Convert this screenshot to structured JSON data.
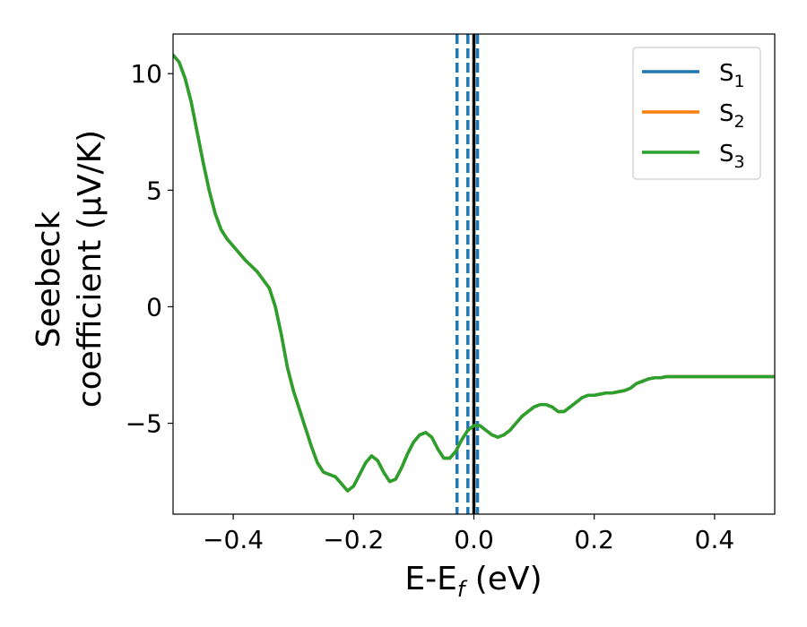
{
  "chart_data": {
    "type": "line",
    "xlabel_main": "E-E",
    "xlabel_sub": "f",
    "xlabel_unit": " (eV)",
    "ylabel_line1": "Seebeck",
    "ylabel_line2": "coefficient  (μV/K)",
    "xlim": [
      -0.5,
      0.5
    ],
    "ylim": [
      -8.9,
      11.7
    ],
    "x_ticks": [
      -0.4,
      -0.2,
      0.0,
      0.2,
      0.4
    ],
    "x_tick_labels": [
      "−0.4",
      "−0.2",
      "0.0",
      "0.2",
      "0.4"
    ],
    "y_ticks": [
      -5,
      0,
      5,
      10
    ],
    "y_tick_labels": [
      "−5",
      "0",
      "5",
      "10"
    ],
    "grid": false,
    "legend_position": "top-right",
    "vertical_lines": [
      {
        "x": -0.028,
        "style": "dashed",
        "color": "#1f77b4"
      },
      {
        "x": -0.01,
        "style": "dashed",
        "color": "#1f77b4"
      },
      {
        "x": 0.006,
        "style": "dashed",
        "color": "#1f77b4"
      },
      {
        "x": 0.0,
        "style": "solid",
        "color": "#000000"
      }
    ],
    "series": [
      {
        "name_main": "S",
        "name_sub": "1",
        "color": "#1f77b4",
        "hidden_under_next": true,
        "x": [
          -0.5,
          -0.49,
          -0.48,
          -0.47,
          -0.46,
          -0.45,
          -0.44,
          -0.43,
          -0.42,
          -0.41,
          -0.4,
          -0.38,
          -0.36,
          -0.34,
          -0.33,
          -0.32,
          -0.31,
          -0.3,
          -0.29,
          -0.28,
          -0.27,
          -0.26,
          -0.25,
          -0.24,
          -0.23,
          -0.22,
          -0.21,
          -0.2,
          -0.19,
          -0.18,
          -0.17,
          -0.16,
          -0.15,
          -0.14,
          -0.13,
          -0.12,
          -0.11,
          -0.1,
          -0.09,
          -0.08,
          -0.07,
          -0.06,
          -0.05,
          -0.04,
          -0.03,
          -0.02,
          -0.01,
          0.0,
          0.01,
          0.02,
          0.03,
          0.04,
          0.05,
          0.06,
          0.07,
          0.08,
          0.09,
          0.1,
          0.11,
          0.12,
          0.13,
          0.14,
          0.15,
          0.16,
          0.17,
          0.18,
          0.19,
          0.2,
          0.21,
          0.22,
          0.23,
          0.24,
          0.25,
          0.26,
          0.27,
          0.28,
          0.29,
          0.3,
          0.31,
          0.32,
          0.33,
          0.34,
          0.35,
          0.36,
          0.37,
          0.38,
          0.39,
          0.4,
          0.41,
          0.42,
          0.43,
          0.44,
          0.45,
          0.46,
          0.47,
          0.48,
          0.49,
          0.5
        ],
        "y": [
          10.8,
          10.5,
          9.8,
          8.8,
          7.5,
          6.2,
          5.0,
          4.0,
          3.3,
          2.9,
          2.6,
          2.0,
          1.5,
          0.8,
          0.0,
          -1.2,
          -2.6,
          -3.6,
          -4.4,
          -5.2,
          -6.0,
          -6.7,
          -7.1,
          -7.2,
          -7.3,
          -7.6,
          -7.9,
          -7.7,
          -7.2,
          -6.7,
          -6.4,
          -6.6,
          -7.1,
          -7.5,
          -7.4,
          -6.9,
          -6.3,
          -5.8,
          -5.5,
          -5.4,
          -5.6,
          -6.1,
          -6.5,
          -6.5,
          -6.2,
          -5.7,
          -5.3,
          -5.1,
          -5.1,
          -5.3,
          -5.5,
          -5.6,
          -5.5,
          -5.3,
          -5.0,
          -4.7,
          -4.5,
          -4.3,
          -4.2,
          -4.2,
          -4.3,
          -4.5,
          -4.5,
          -4.3,
          -4.1,
          -3.9,
          -3.8,
          -3.8,
          -3.75,
          -3.7,
          -3.7,
          -3.65,
          -3.6,
          -3.5,
          -3.3,
          -3.2,
          -3.1,
          -3.05,
          -3.05,
          -3.0,
          -3.0,
          -3.0,
          -3.0,
          -3.0,
          -3.0,
          -3.0,
          -3.0,
          -3.0,
          -3.0,
          -3.0,
          -3.0,
          -3.0,
          -3.0,
          -3.0,
          -3.0,
          -3.0,
          -3.0,
          -3.0
        ]
      },
      {
        "name_main": "S",
        "name_sub": "2",
        "color": "#ff7f0e",
        "hidden_under_next": true,
        "x": [
          -0.5,
          -0.49,
          -0.48,
          -0.47,
          -0.46,
          -0.45,
          -0.44,
          -0.43,
          -0.42,
          -0.41,
          -0.4,
          -0.38,
          -0.36,
          -0.34,
          -0.33,
          -0.32,
          -0.31,
          -0.3,
          -0.29,
          -0.28,
          -0.27,
          -0.26,
          -0.25,
          -0.24,
          -0.23,
          -0.22,
          -0.21,
          -0.2,
          -0.19,
          -0.18,
          -0.17,
          -0.16,
          -0.15,
          -0.14,
          -0.13,
          -0.12,
          -0.11,
          -0.1,
          -0.09,
          -0.08,
          -0.07,
          -0.06,
          -0.05,
          -0.04,
          -0.03,
          -0.02,
          -0.01,
          0.0,
          0.01,
          0.02,
          0.03,
          0.04,
          0.05,
          0.06,
          0.07,
          0.08,
          0.09,
          0.1,
          0.11,
          0.12,
          0.13,
          0.14,
          0.15,
          0.16,
          0.17,
          0.18,
          0.19,
          0.2,
          0.21,
          0.22,
          0.23,
          0.24,
          0.25,
          0.26,
          0.27,
          0.28,
          0.29,
          0.3,
          0.31,
          0.32,
          0.33,
          0.34,
          0.35,
          0.36,
          0.37,
          0.38,
          0.39,
          0.4,
          0.41,
          0.42,
          0.43,
          0.44,
          0.45,
          0.46,
          0.47,
          0.48,
          0.49,
          0.5
        ],
        "y": [
          10.8,
          10.5,
          9.8,
          8.8,
          7.5,
          6.2,
          5.0,
          4.0,
          3.3,
          2.9,
          2.6,
          2.0,
          1.5,
          0.8,
          0.0,
          -1.2,
          -2.6,
          -3.6,
          -4.4,
          -5.2,
          -6.0,
          -6.7,
          -7.1,
          -7.2,
          -7.3,
          -7.6,
          -7.9,
          -7.7,
          -7.2,
          -6.7,
          -6.4,
          -6.6,
          -7.1,
          -7.5,
          -7.4,
          -6.9,
          -6.3,
          -5.8,
          -5.5,
          -5.4,
          -5.6,
          -6.1,
          -6.5,
          -6.5,
          -6.2,
          -5.7,
          -5.3,
          -5.1,
          -5.1,
          -5.3,
          -5.5,
          -5.6,
          -5.5,
          -5.3,
          -5.0,
          -4.7,
          -4.5,
          -4.3,
          -4.2,
          -4.2,
          -4.3,
          -4.5,
          -4.5,
          -4.3,
          -4.1,
          -3.9,
          -3.8,
          -3.8,
          -3.75,
          -3.7,
          -3.7,
          -3.65,
          -3.6,
          -3.5,
          -3.3,
          -3.2,
          -3.1,
          -3.05,
          -3.05,
          -3.0,
          -3.0,
          -3.0,
          -3.0,
          -3.0,
          -3.0,
          -3.0,
          -3.0,
          -3.0,
          -3.0,
          -3.0,
          -3.0,
          -3.0,
          -3.0,
          -3.0,
          -3.0,
          -3.0,
          -3.0,
          -3.0
        ]
      },
      {
        "name_main": "S",
        "name_sub": "3",
        "color": "#2ca02c",
        "hidden_under_next": false,
        "x": [
          -0.5,
          -0.49,
          -0.48,
          -0.47,
          -0.46,
          -0.45,
          -0.44,
          -0.43,
          -0.42,
          -0.41,
          -0.4,
          -0.38,
          -0.36,
          -0.34,
          -0.33,
          -0.32,
          -0.31,
          -0.3,
          -0.29,
          -0.28,
          -0.27,
          -0.26,
          -0.25,
          -0.24,
          -0.23,
          -0.22,
          -0.21,
          -0.2,
          -0.19,
          -0.18,
          -0.17,
          -0.16,
          -0.15,
          -0.14,
          -0.13,
          -0.12,
          -0.11,
          -0.1,
          -0.09,
          -0.08,
          -0.07,
          -0.06,
          -0.05,
          -0.04,
          -0.03,
          -0.02,
          -0.01,
          0.0,
          0.01,
          0.02,
          0.03,
          0.04,
          0.05,
          0.06,
          0.07,
          0.08,
          0.09,
          0.1,
          0.11,
          0.12,
          0.13,
          0.14,
          0.15,
          0.16,
          0.17,
          0.18,
          0.19,
          0.2,
          0.21,
          0.22,
          0.23,
          0.24,
          0.25,
          0.26,
          0.27,
          0.28,
          0.29,
          0.3,
          0.31,
          0.32,
          0.33,
          0.34,
          0.35,
          0.36,
          0.37,
          0.38,
          0.39,
          0.4,
          0.41,
          0.42,
          0.43,
          0.44,
          0.45,
          0.46,
          0.47,
          0.48,
          0.49,
          0.5
        ],
        "y": [
          10.8,
          10.5,
          9.8,
          8.8,
          7.5,
          6.2,
          5.0,
          4.0,
          3.3,
          2.9,
          2.6,
          2.0,
          1.5,
          0.8,
          0.0,
          -1.2,
          -2.6,
          -3.6,
          -4.4,
          -5.2,
          -6.0,
          -6.7,
          -7.1,
          -7.2,
          -7.3,
          -7.6,
          -7.9,
          -7.7,
          -7.2,
          -6.7,
          -6.4,
          -6.6,
          -7.1,
          -7.5,
          -7.4,
          -6.9,
          -6.3,
          -5.8,
          -5.5,
          -5.4,
          -5.6,
          -6.1,
          -6.5,
          -6.5,
          -6.2,
          -5.7,
          -5.3,
          -5.1,
          -5.1,
          -5.3,
          -5.5,
          -5.6,
          -5.5,
          -5.3,
          -5.0,
          -4.7,
          -4.5,
          -4.3,
          -4.2,
          -4.2,
          -4.3,
          -4.5,
          -4.5,
          -4.3,
          -4.1,
          -3.9,
          -3.8,
          -3.8,
          -3.75,
          -3.7,
          -3.7,
          -3.65,
          -3.6,
          -3.5,
          -3.3,
          -3.2,
          -3.1,
          -3.05,
          -3.05,
          -3.0,
          -3.0,
          -3.0,
          -3.0,
          -3.0,
          -3.0,
          -3.0,
          -3.0,
          -3.0,
          -3.0,
          -3.0,
          -3.0,
          -3.0,
          -3.0,
          -3.0,
          -3.0,
          -3.0,
          -3.0,
          -3.0
        ]
      }
    ]
  }
}
